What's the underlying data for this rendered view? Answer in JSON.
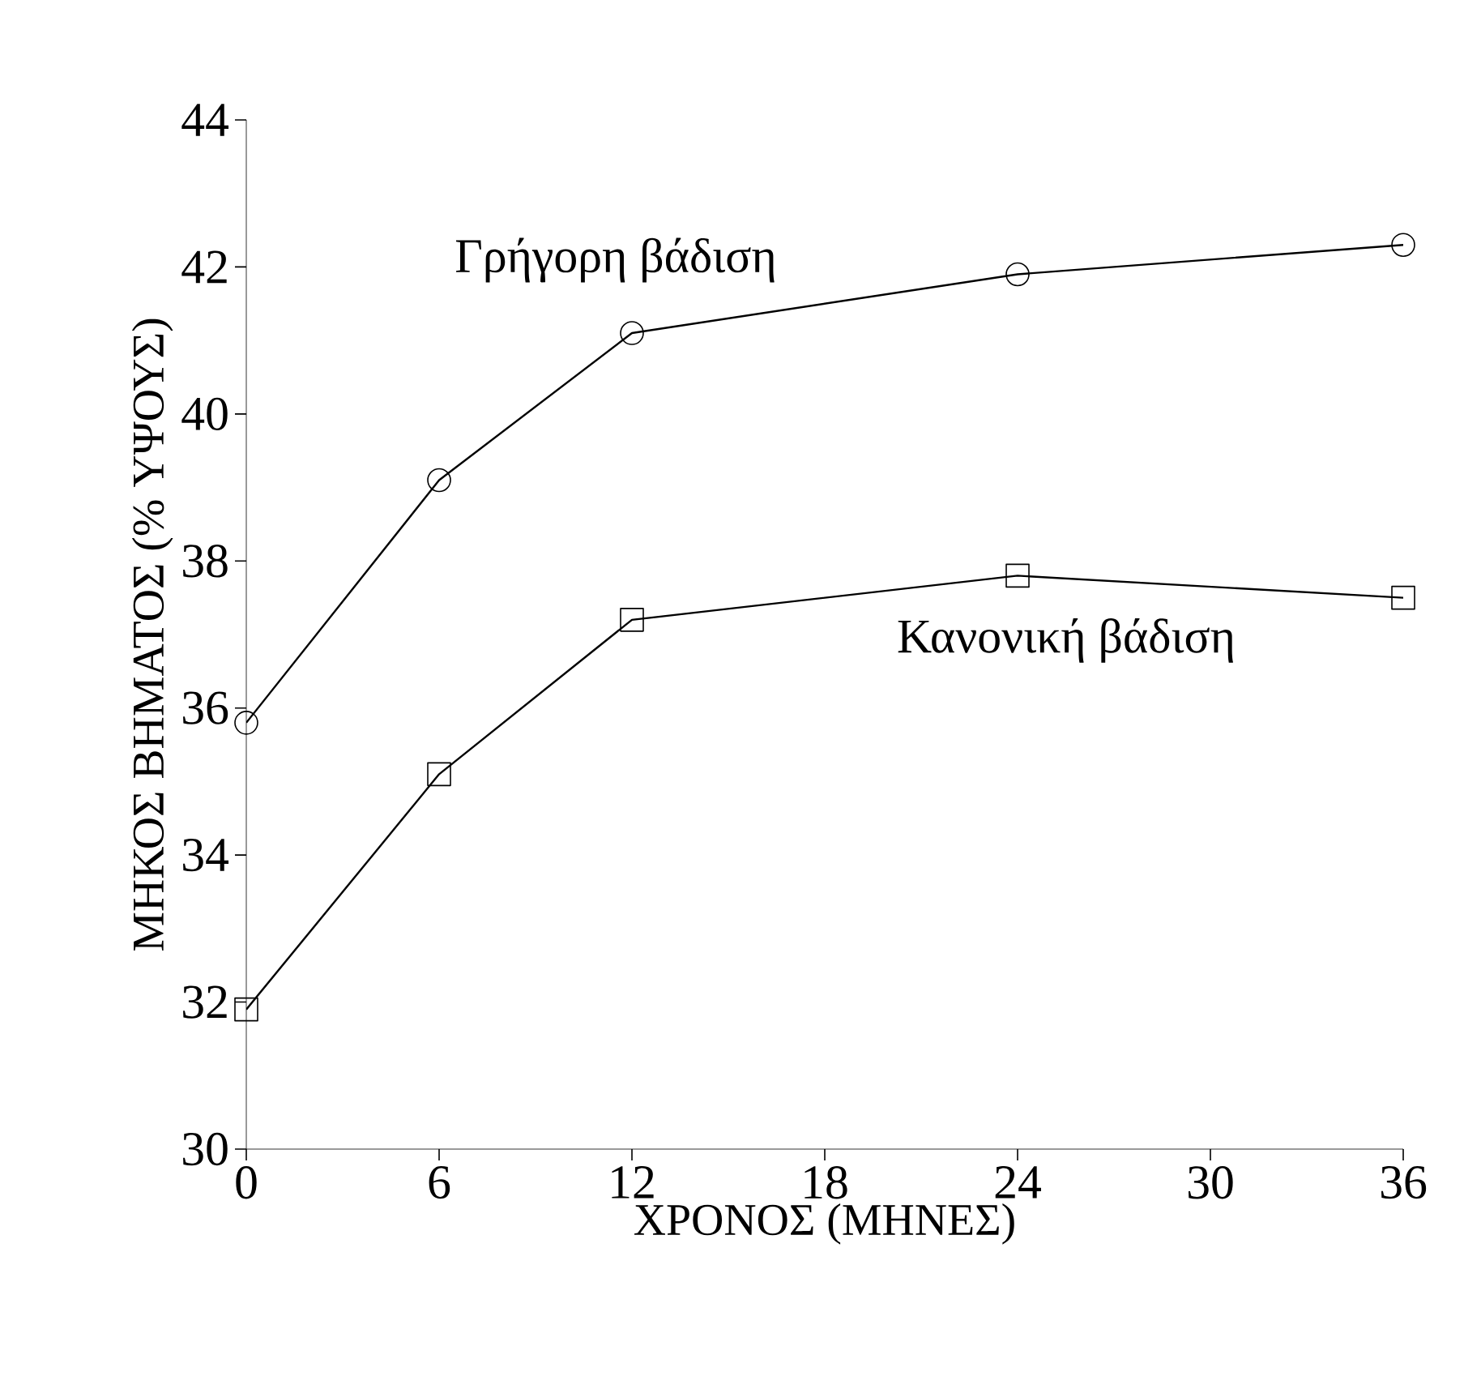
{
  "chart_data": {
    "type": "line",
    "xlabel": "ΧΡΟΝΟΣ (ΜΗΝΕΣ)",
    "ylabel": "ΜΗΚΟΣ ΒΗΜΑΤΟΣ (% ΥΨΟΥΣ)",
    "x": [
      0,
      6,
      12,
      24,
      36
    ],
    "xlim": [
      0,
      36
    ],
    "xticks": [
      0,
      6,
      12,
      18,
      24,
      30,
      36
    ],
    "ylim": [
      30,
      44
    ],
    "yticks": [
      30,
      32,
      34,
      36,
      38,
      40,
      42,
      44
    ],
    "grid": false,
    "legend": false,
    "line_style": "solid",
    "series": [
      {
        "name": "Γρήγορη βάδιση",
        "color": "#000000",
        "marker": "circle",
        "values": [
          35.8,
          39.1,
          41.1,
          41.9,
          42.3
        ]
      },
      {
        "name": "Κανονική βάδιση",
        "color": "#000000",
        "marker": "square",
        "values": [
          31.9,
          35.1,
          37.2,
          37.8,
          37.5
        ]
      }
    ]
  }
}
